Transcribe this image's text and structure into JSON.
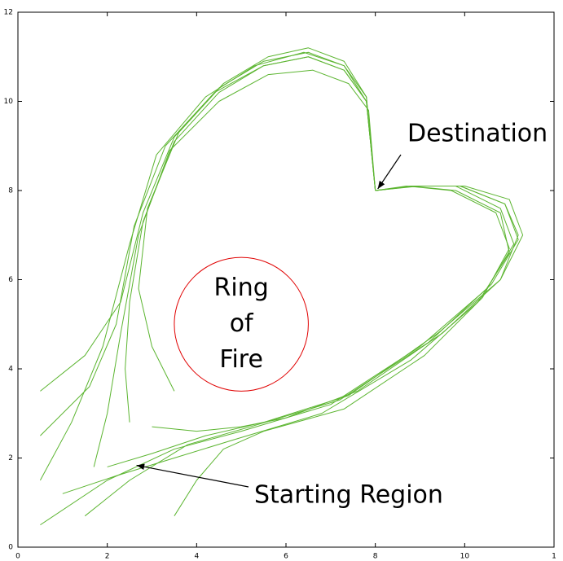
{
  "chart_data": {
    "type": "line",
    "xlim": [
      0,
      12
    ],
    "ylim": [
      0,
      12
    ],
    "xticks": [
      0,
      2,
      4,
      6,
      8,
      10,
      {
        "value": 12,
        "label": "1"
      }
    ],
    "yticks": [
      0,
      2,
      4,
      6,
      8,
      10,
      12
    ],
    "color": "#5cb531",
    "series": [
      {
        "x": [
          0.5,
          1.5,
          2.3,
          2.8,
          3.5,
          4.5,
          5.5,
          6.5,
          7.3,
          7.8,
          8
        ],
        "y": [
          3.5,
          4.3,
          5.5,
          7.5,
          9.2,
          10.3,
          10.9,
          11.1,
          10.8,
          10,
          8
        ]
      },
      {
        "x": [
          0.5,
          1.6,
          2.2,
          2.6,
          3.3,
          4.4,
          5.5,
          6.5,
          7.3,
          7.8,
          8
        ],
        "y": [
          2.5,
          3.6,
          5,
          7.2,
          9,
          10.2,
          10.8,
          11,
          10.7,
          10,
          8
        ]
      },
      {
        "x": [
          1.7,
          2.0,
          2.3,
          2.7,
          3.4,
          4.5,
          5.6,
          6.6,
          7.4,
          7.85,
          8
        ],
        "y": [
          1.8,
          3,
          4.8,
          7,
          8.9,
          10,
          10.6,
          10.7,
          10.4,
          9.8,
          8
        ]
      },
      {
        "x": [
          3.5,
          3.0,
          2.7,
          2.9,
          3.6,
          4.6,
          5.6,
          6.5,
          7.3,
          7.8,
          8
        ],
        "y": [
          3.5,
          4.5,
          5.8,
          7.6,
          9.3,
          10.4,
          11,
          11.2,
          10.9,
          10.1,
          8
        ]
      },
      {
        "x": [
          0.5,
          1.2,
          1.9,
          2.5,
          3.1,
          4.2,
          5.3,
          6.4,
          7.3,
          7.8,
          8
        ],
        "y": [
          1.5,
          2.8,
          4.5,
          6.8,
          8.8,
          10.1,
          10.8,
          11.1,
          10.8,
          10.1,
          8
        ]
      },
      {
        "x": [
          2.5,
          2.4,
          2.5,
          2.8,
          3.5,
          4.5,
          5.5,
          6.5,
          7.3,
          7.8,
          8
        ],
        "y": [
          2.8,
          4,
          5.5,
          7.3,
          9.1,
          10.2,
          10.8,
          11,
          10.7,
          10,
          8
        ]
      },
      {
        "x": [
          0.5,
          2,
          3.5,
          5,
          7,
          9,
          10.5,
          11.1,
          10.8,
          9.8,
          8.8,
          8
        ],
        "y": [
          0.5,
          1.5,
          2.2,
          2.6,
          3.2,
          4.5,
          5.8,
          6.8,
          7.6,
          8.1,
          8.1,
          8
        ]
      },
      {
        "x": [
          1.5,
          2.5,
          3.8,
          5.2,
          7.2,
          9.2,
          10.6,
          11.2,
          10.9,
          9.9,
          8.9,
          8
        ],
        "y": [
          0.7,
          1.5,
          2.3,
          2.7,
          3.3,
          4.6,
          5.9,
          6.9,
          7.7,
          8.1,
          8.1,
          8
        ]
      },
      {
        "x": [
          3.5,
          4,
          4.6,
          5.5,
          7.3,
          9.1,
          10.4,
          11,
          10.7,
          9.7,
          8.7,
          8
        ],
        "y": [
          0.7,
          1.5,
          2.2,
          2.6,
          3.1,
          4.3,
          5.6,
          6.7,
          7.5,
          8,
          8.1,
          8
        ]
      },
      {
        "x": [
          2,
          3,
          4.2,
          5.5,
          7.4,
          9.4,
          10.8,
          11.3,
          11,
          10,
          9,
          8
        ],
        "y": [
          1.8,
          2.1,
          2.5,
          2.8,
          3.4,
          4.8,
          6,
          7,
          7.8,
          8.1,
          8.1,
          8
        ]
      },
      {
        "x": [
          3,
          4,
          5,
          6,
          7.6,
          9.5,
          10.8,
          11.2,
          10.9,
          9.9,
          8.9,
          8
        ],
        "y": [
          2.7,
          2.6,
          2.7,
          2.9,
          3.5,
          4.8,
          6,
          7,
          7.7,
          8.1,
          8.1,
          8
        ]
      },
      {
        "x": [
          1,
          2.2,
          3.5,
          4.8,
          6.8,
          8.8,
          10.3,
          11,
          10.8,
          9.8,
          8.8,
          8
        ],
        "y": [
          1.2,
          1.6,
          2,
          2.4,
          3,
          4.2,
          5.5,
          6.6,
          7.5,
          8,
          8.1,
          8
        ]
      }
    ],
    "circle": {
      "center": [
        5,
        5
      ],
      "radius": 1.5,
      "color": "#e00000"
    },
    "ring_label": [
      "Ring",
      "of",
      "Fire"
    ],
    "annotations": [
      {
        "text": "Destination",
        "xy": [
          8,
          8
        ]
      },
      {
        "text": "Starting Region",
        "xy": [
          2.6,
          1.8
        ]
      }
    ]
  }
}
